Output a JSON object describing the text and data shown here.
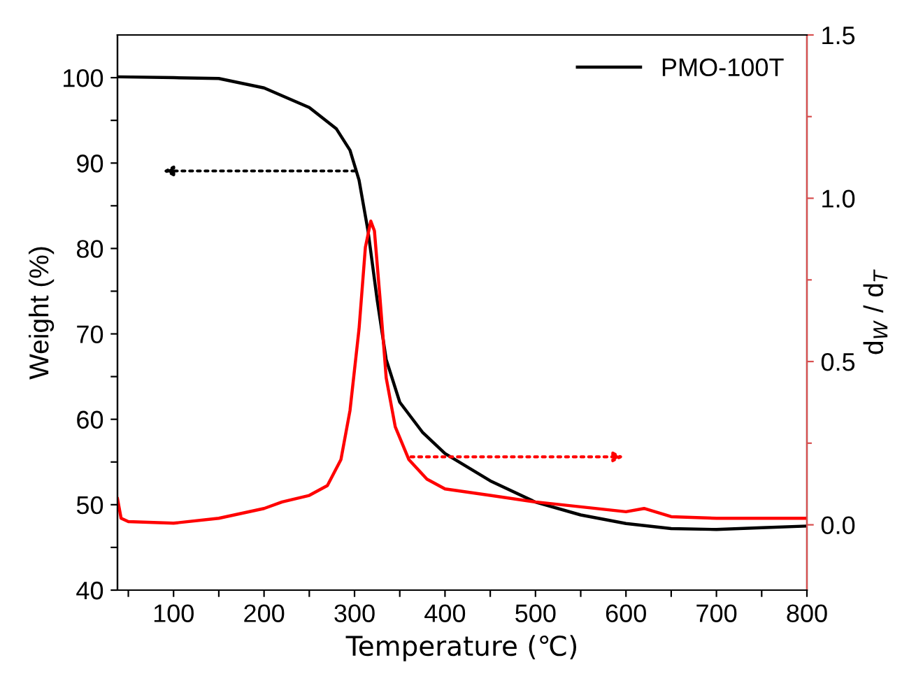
{
  "chart_data": {
    "type": "line",
    "xlabel": "Temperature (℃)",
    "ylabel": "Weight (%)",
    "y2label": "d$_{W}$ / d$_{T}$",
    "xlim": [
      38,
      800
    ],
    "ylim": [
      40,
      105
    ],
    "y2lim": [
      -0.2,
      1.5
    ],
    "xticks": [
      {
        "value": 50,
        "label": null
      },
      100,
      {
        "value": 150,
        "label": null
      },
      200,
      {
        "value": 250,
        "label": null
      },
      300,
      {
        "value": 350,
        "label": null
      },
      400,
      {
        "value": 450,
        "label": null
      },
      500,
      {
        "value": 550,
        "label": null
      },
      600,
      {
        "value": 650,
        "label": null
      },
      700,
      {
        "value": 750,
        "label": null
      },
      800
    ],
    "yticks": [
      40,
      {
        "value": 45,
        "label": null
      },
      50,
      {
        "value": 55,
        "label": null
      },
      60,
      {
        "value": 65,
        "label": null
      },
      70,
      {
        "value": 75,
        "label": null
      },
      80,
      {
        "value": 85,
        "label": null
      },
      90,
      {
        "value": 95,
        "label": null
      },
      100
    ],
    "y2ticks": [
      {
        "value": 0.0,
        "label": "0.0"
      },
      {
        "value": 0.25,
        "label": null
      },
      {
        "value": 0.5,
        "label": "0.5"
      },
      {
        "value": 0.75,
        "label": null
      },
      {
        "value": 1.0,
        "label": "1.0"
      },
      {
        "value": 1.25,
        "label": null
      },
      {
        "value": 1.5,
        "label": "1.5"
      }
    ],
    "legend": "top right",
    "grid": false,
    "marker": "none",
    "line_style": "solid",
    "series": [
      {
        "name": "PMO-100T",
        "color": "#000000",
        "x": [
          38,
          100,
          150,
          200,
          250,
          280,
          295,
          305,
          315,
          325,
          335,
          350,
          375,
          400,
          450,
          500,
          550,
          600,
          650,
          700,
          750,
          800
        ],
        "values": [
          100.1,
          100,
          99.9,
          98.8,
          96.5,
          94,
          91.5,
          88,
          82,
          74,
          67,
          62,
          58.5,
          56,
          52.8,
          50.3,
          48.8,
          47.8,
          47.2,
          47.1,
          47.3,
          47.5
        ]
      },
      {
        "color": "#ff0000",
        "axis": "y2",
        "x": [
          38,
          42,
          50,
          100,
          150,
          200,
          220,
          250,
          270,
          285,
          295,
          305,
          312,
          318,
          322,
          328,
          335,
          345,
          360,
          380,
          400,
          450,
          500,
          550,
          600,
          620,
          650,
          700,
          800
        ],
        "values": [
          0.08,
          0.02,
          0.01,
          0.005,
          0.02,
          0.05,
          0.07,
          0.09,
          0.12,
          0.2,
          0.35,
          0.6,
          0.85,
          0.93,
          0.9,
          0.7,
          0.45,
          0.3,
          0.2,
          0.14,
          0.11,
          0.09,
          0.07,
          0.055,
          0.04,
          0.05,
          0.025,
          0.02,
          0.02
        ]
      }
    ]
  }
}
